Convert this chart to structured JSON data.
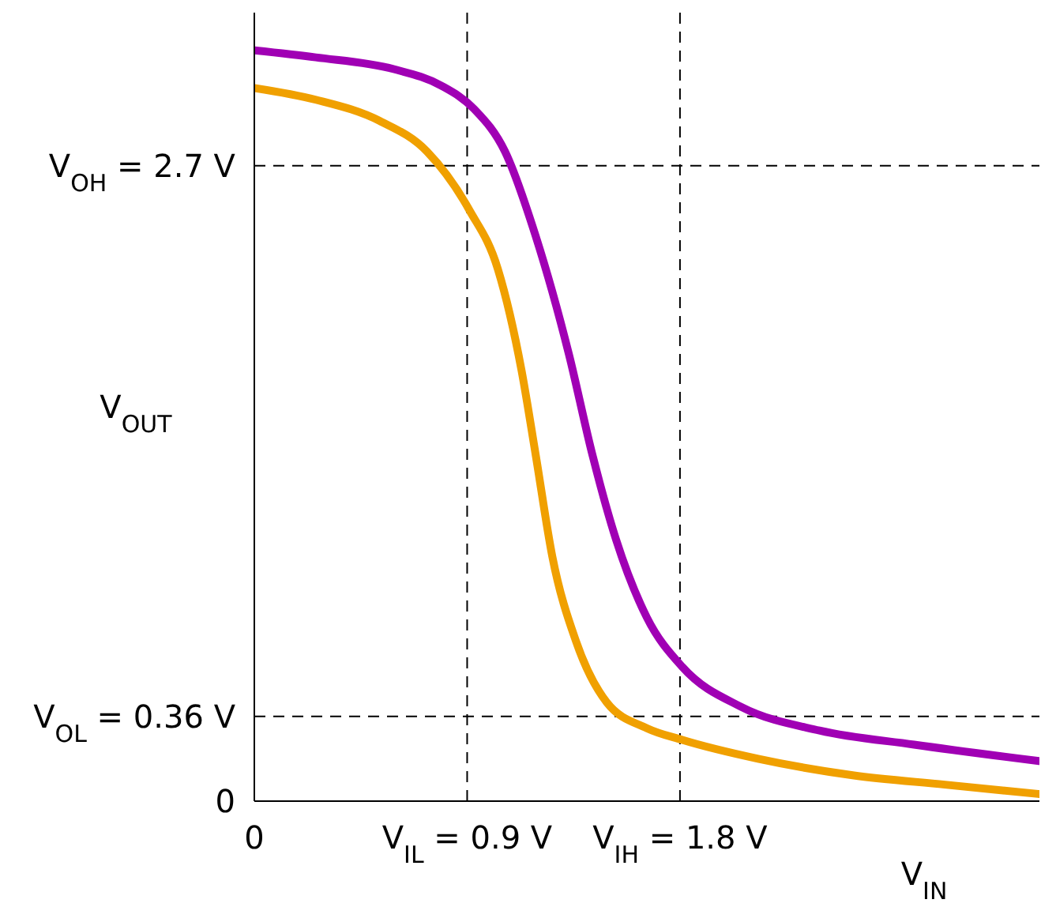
{
  "chart_data": {
    "type": "line",
    "xlabel": "V$_{IN}$",
    "ylabel": "V$_{OUT}$",
    "xlim": [
      0,
      3.32
    ],
    "ylim": [
      0,
      3.35
    ],
    "xticks": [
      0,
      {
        "value": 0.9,
        "label": "V$_{IL}$ = 0.9 V"
      },
      {
        "value": 1.8,
        "label": "V$_{IH}$ = 1.8 V"
      }
    ],
    "yticks": [
      0,
      {
        "value": 0.36,
        "label": "V$_{OL}$ = 0.36 V"
      },
      {
        "value": 2.7,
        "label": "V$_{OH}$ = 2.7 V"
      }
    ],
    "series": [
      {
        "color": "#a000b4",
        "x": [
          0,
          0.26,
          0.59,
          0.79,
          0.93,
          1.06,
          1.19,
          1.33,
          1.43,
          1.53,
          1.66,
          1.81,
          2.06,
          2.39,
          2.79,
          3.32
        ],
        "values": [
          3.19,
          3.16,
          3.11,
          3.04,
          2.94,
          2.76,
          2.4,
          1.9,
          1.47,
          1.11,
          0.78,
          0.57,
          0.4,
          0.3,
          0.24,
          0.17
        ]
      },
      {
        "color": "#f0a000",
        "x": [
          0,
          0.26,
          0.53,
          0.73,
          0.91,
          1.03,
          1.13,
          1.19,
          1.26,
          1.36,
          1.49,
          1.66,
          1.81,
          2.13,
          2.53,
          2.92,
          3.32
        ],
        "values": [
          3.03,
          2.98,
          2.89,
          2.76,
          2.51,
          2.26,
          1.83,
          1.47,
          1.04,
          0.68,
          0.42,
          0.31,
          0.26,
          0.18,
          0.11,
          0.07,
          0.03
        ]
      }
    ],
    "ref_lines": [
      {
        "axis": "x",
        "value": 0.9,
        "color": "#000000",
        "line_style": "dashed"
      },
      {
        "axis": "x",
        "value": 1.8,
        "color": "#000000",
        "line_style": "dashed"
      },
      {
        "axis": "y",
        "value": 0.36,
        "color": "#000000",
        "line_style": "dashed"
      },
      {
        "axis": "y",
        "value": 2.7,
        "color": "#000000",
        "line_style": "dashed"
      }
    ],
    "grid": false,
    "legend": false,
    "marker": "none",
    "line_style": "solid"
  }
}
